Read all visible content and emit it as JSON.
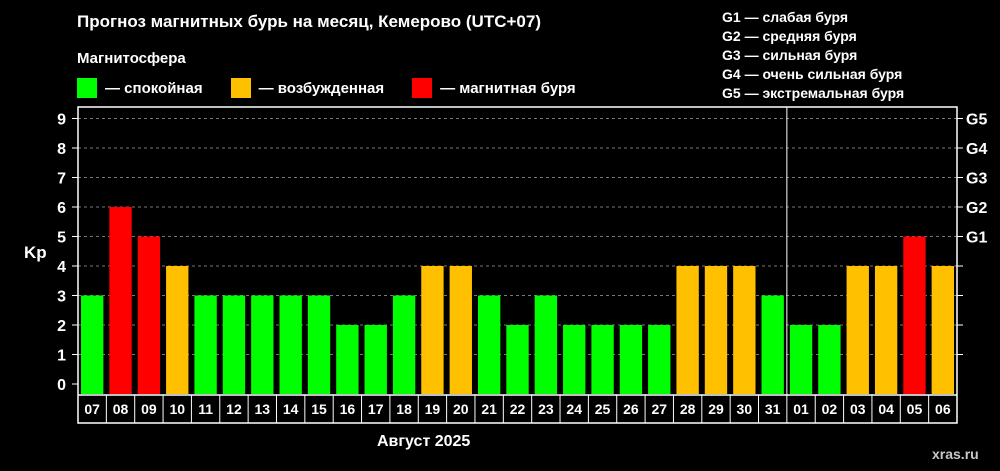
{
  "title": "Прогноз магнитных бурь на месяц, Кемерово (UTC+07)",
  "legend_title": "Магнитосфера",
  "legend": [
    {
      "key": "calm",
      "label": "— спокойная",
      "color": "#00ff00"
    },
    {
      "key": "active",
      "label": "— возбужденная",
      "color": "#ffc000"
    },
    {
      "key": "storm",
      "label": "— магнитная буря",
      "color": "#ff0000"
    }
  ],
  "g_levels": [
    "G1 — слабая буря",
    "G2 — средняя буря",
    "G3 — сильная буря",
    "G4 — очень сильная буря",
    "G5 — экстремальная буря"
  ],
  "credit": "xras.ru",
  "chart_data": {
    "type": "bar",
    "title": "Прогноз магнитных бурь на месяц, Кемерово (UTC+07)",
    "xlabel": "Август 2025",
    "ylabel": "Kp",
    "ylim": [
      0,
      9
    ],
    "yticks": [
      "0",
      "1",
      "2",
      "3",
      "4",
      "5",
      "6",
      "7",
      "8",
      "9"
    ],
    "right_axis_ticks": [
      {
        "kp": 5,
        "label": "G1"
      },
      {
        "kp": 6,
        "label": "G2"
      },
      {
        "kp": 7,
        "label": "G3"
      },
      {
        "kp": 8,
        "label": "G4"
      },
      {
        "kp": 9,
        "label": "G5"
      }
    ],
    "grid": true,
    "month_divider_after": "31",
    "categories": [
      "07",
      "08",
      "09",
      "10",
      "11",
      "12",
      "13",
      "14",
      "15",
      "16",
      "17",
      "18",
      "19",
      "20",
      "21",
      "22",
      "23",
      "24",
      "25",
      "26",
      "27",
      "28",
      "29",
      "30",
      "31",
      "01",
      "02",
      "03",
      "04",
      "05",
      "06"
    ],
    "values": [
      3,
      6,
      5,
      4,
      3,
      3,
      3,
      3,
      3,
      2,
      2,
      3,
      4,
      4,
      3,
      2,
      3,
      2,
      2,
      2,
      2,
      4,
      4,
      4,
      3,
      2,
      2,
      4,
      4,
      5,
      4
    ],
    "level_colors": {
      "calm": "#00ff00",
      "active": "#ffc000",
      "storm": "#ff0000"
    }
  }
}
